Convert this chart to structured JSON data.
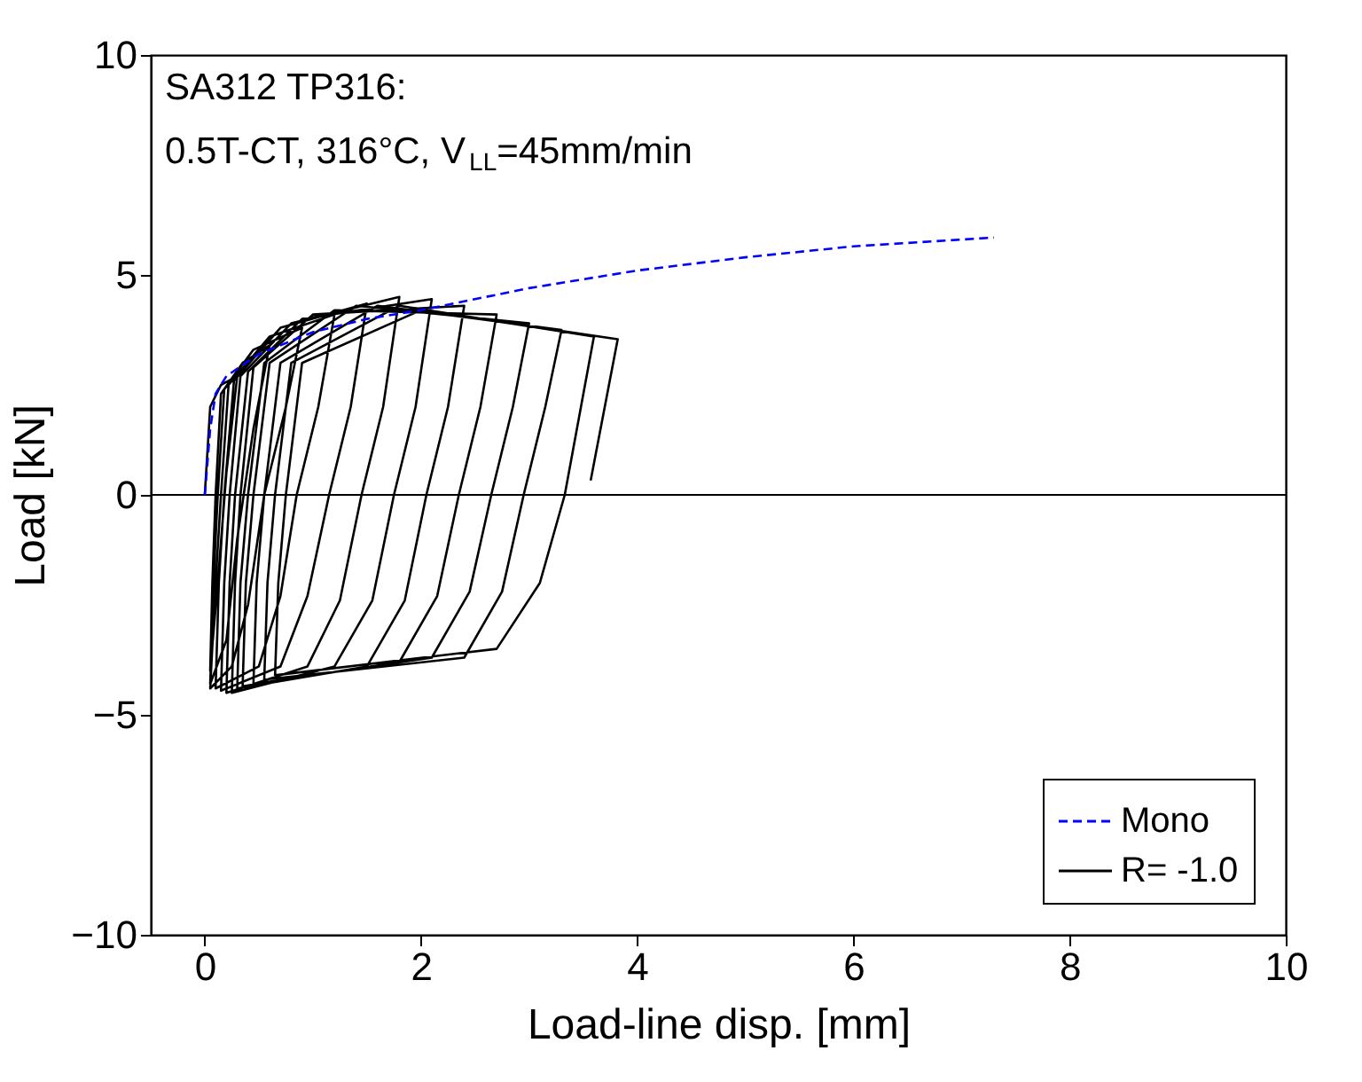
{
  "chart_data": {
    "type": "line",
    "xlabel": "Load-line disp. [mm]",
    "ylabel": "Load [kN]",
    "xlim": [
      -0.5,
      10
    ],
    "xticks": [
      0,
      2,
      4,
      6,
      8,
      10
    ],
    "ylim": [
      -10,
      10
    ],
    "yticks": [
      -10,
      -5,
      0,
      5,
      10
    ],
    "grid": false,
    "legend": "bottom right",
    "marker": "none",
    "annotations": [
      "SA312 TP316:",
      "0.5T-CT, 316°C, V$_{LL}$=45mm/min"
    ],
    "ref_lines": [
      {
        "axis": "y",
        "value": 0,
        "color": "#000000",
        "line_style": "solid"
      }
    ],
    "series": [
      {
        "name": "Mono",
        "color": "#0000ff",
        "line_style": "dashed",
        "x": [
          0,
          0.05,
          0.1,
          0.2,
          0.5,
          1,
          1.5,
          2,
          2.5,
          3,
          4,
          5,
          6,
          7.3
        ],
        "values": [
          0,
          1.5,
          2.3,
          2.7,
          3.2,
          3.7,
          4.0,
          4.2,
          4.45,
          4.7,
          5.1,
          5.4,
          5.65,
          5.85
        ]
      },
      {
        "name": "R= -1.0",
        "color": "#000000",
        "line_style": "solid",
        "x": [
          0,
          0.05,
          0.15,
          0.3,
          0.2,
          0.12,
          0.05,
          0.07,
          0.1,
          0.15,
          0.35,
          0.6,
          0.45,
          0.3,
          0.2,
          0.05,
          0.08,
          0.12,
          0.18,
          0.45,
          0.9,
          0.75,
          0.55,
          0.4,
          0.25,
          0.05,
          0.1,
          0.15,
          0.22,
          0.6,
          1.2,
          1.05,
          0.85,
          0.7,
          0.5,
          0.1,
          0.13,
          0.18,
          0.27,
          0.7,
          1.5,
          1.35,
          1.15,
          0.95,
          0.7,
          0.15,
          0.18,
          0.23,
          0.33,
          0.8,
          1.8,
          1.65,
          1.45,
          1.25,
          0.95,
          0.2,
          0.23,
          0.28,
          0.4,
          0.9,
          2.1,
          1.95,
          1.75,
          1.55,
          1.2,
          0.25,
          0.28,
          0.33,
          0.45,
          1.0,
          2.4,
          2.25,
          2.05,
          1.85,
          1.5,
          0.3,
          0.33,
          0.4,
          0.55,
          1.2,
          2.7,
          2.55,
          2.35,
          2.15,
          1.8,
          0.35,
          0.38,
          0.45,
          0.6,
          1.4,
          3.0,
          2.85,
          2.65,
          2.45,
          2.1,
          0.45,
          0.48,
          0.55,
          0.7,
          1.6,
          3.3,
          3.15,
          2.95,
          2.75,
          2.4,
          0.55,
          0.58,
          0.65,
          0.8,
          1.8,
          3.6,
          3.48,
          3.33,
          3.1,
          2.7,
          0.65,
          0.68,
          0.75,
          0.9,
          2.0,
          3.82,
          3.57
        ],
        "values": [
          0,
          2,
          2.5,
          2.7,
          0.5,
          -2,
          -4.0,
          -2,
          0,
          2.3,
          3.0,
          3.4,
          1.5,
          -1,
          -3.3,
          -4.3,
          -2,
          0,
          2.4,
          3.3,
          3.8,
          2,
          0,
          -2.5,
          -3.9,
          -4.4,
          -2,
          0,
          2.5,
          3.6,
          4.1,
          2,
          0,
          -2.3,
          -3.9,
          -4.4,
          -2,
          0,
          2.6,
          3.8,
          4.35,
          2,
          0,
          -2.3,
          -3.9,
          -4.45,
          -2,
          0,
          2.7,
          3.9,
          4.5,
          2,
          0,
          -2.4,
          -3.9,
          -4.5,
          -2,
          0,
          2.8,
          4.0,
          4.45,
          2,
          0,
          -2.4,
          -3.9,
          -4.5,
          -2,
          0,
          2.9,
          4.1,
          4.3,
          2,
          0,
          -2.4,
          -3.9,
          -4.4,
          -2,
          0,
          3.0,
          4.2,
          4.1,
          2,
          0,
          -2.3,
          -3.8,
          -4.35,
          -2,
          0,
          3.0,
          4.3,
          3.9,
          2,
          0,
          -2.2,
          -3.7,
          -4.3,
          -2,
          0,
          3.0,
          4.3,
          3.75,
          2,
          0,
          -2.2,
          -3.7,
          -4.2,
          -2,
          0,
          3.0,
          4.3,
          3.6,
          2,
          0,
          -2,
          -3.5,
          -4.1,
          -2,
          0,
          3.0,
          4.2,
          3.54,
          0.33
        ]
      }
    ]
  }
}
